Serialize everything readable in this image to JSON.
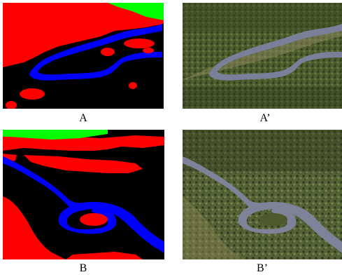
{
  "captions": {
    "a": "A",
    "a_prime": "A’",
    "b": "B",
    "b_prime": "B’"
  },
  "colors": {
    "background": "#ffffff",
    "segment_red": "#ff0000",
    "segment_green": "#00ff00",
    "segment_blue": "#0000ff",
    "segment_black": "#000000",
    "terrain_dark": "#2f3a1f",
    "terrain_mid": "#5b6a36",
    "terrain_light": "#8a8a4e",
    "river": "#7a7f9a"
  }
}
